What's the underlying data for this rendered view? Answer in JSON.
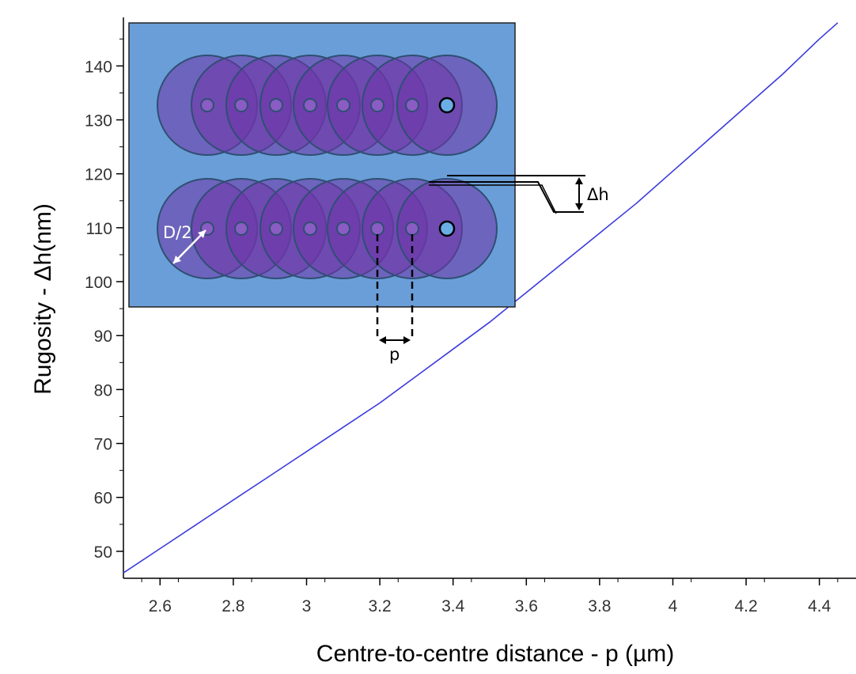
{
  "chart_data": {
    "type": "line",
    "title": "",
    "xlabel": "Centre-to-centre distance - p (µm)",
    "ylabel": "Rugosity - Δh(nm)",
    "xlim": [
      2.5,
      4.5
    ],
    "ylim": [
      45,
      149
    ],
    "x_ticks": [
      "2.6",
      "2.8",
      "3",
      "3.2",
      "3.4",
      "3.6",
      "3.8",
      "4",
      "4.2",
      "4.4"
    ],
    "y_ticks": [
      "50",
      "60",
      "70",
      "80",
      "90",
      "100",
      "110",
      "120",
      "130",
      "140"
    ],
    "grid": false,
    "series": [
      {
        "color": "#3b3bdc",
        "x": [
          2.5,
          2.6,
          2.7,
          2.8,
          2.9,
          3.0,
          3.1,
          3.2,
          3.3,
          3.4,
          3.5,
          3.6,
          3.7,
          3.8,
          3.9,
          4.0,
          4.1,
          4.2,
          4.3,
          4.4,
          4.45
        ],
        "y": [
          46,
          50.5,
          55,
          59.5,
          64,
          68.5,
          73,
          77.5,
          82.5,
          87.5,
          92.5,
          98,
          103.5,
          109,
          114.5,
          120.5,
          126.5,
          132.5,
          138.5,
          145,
          148
        ]
      }
    ],
    "inset": {
      "labels": {
        "radius": "D/2",
        "pitch": "p",
        "height": "Δh"
      },
      "colors": {
        "background": "#6a9ed8",
        "disk_fill": "#7035a8",
        "disk_stroke": "#2e4f73",
        "hole_fill": "#8a5cc4",
        "end_hole_fill": "#6aaee6"
      }
    }
  }
}
